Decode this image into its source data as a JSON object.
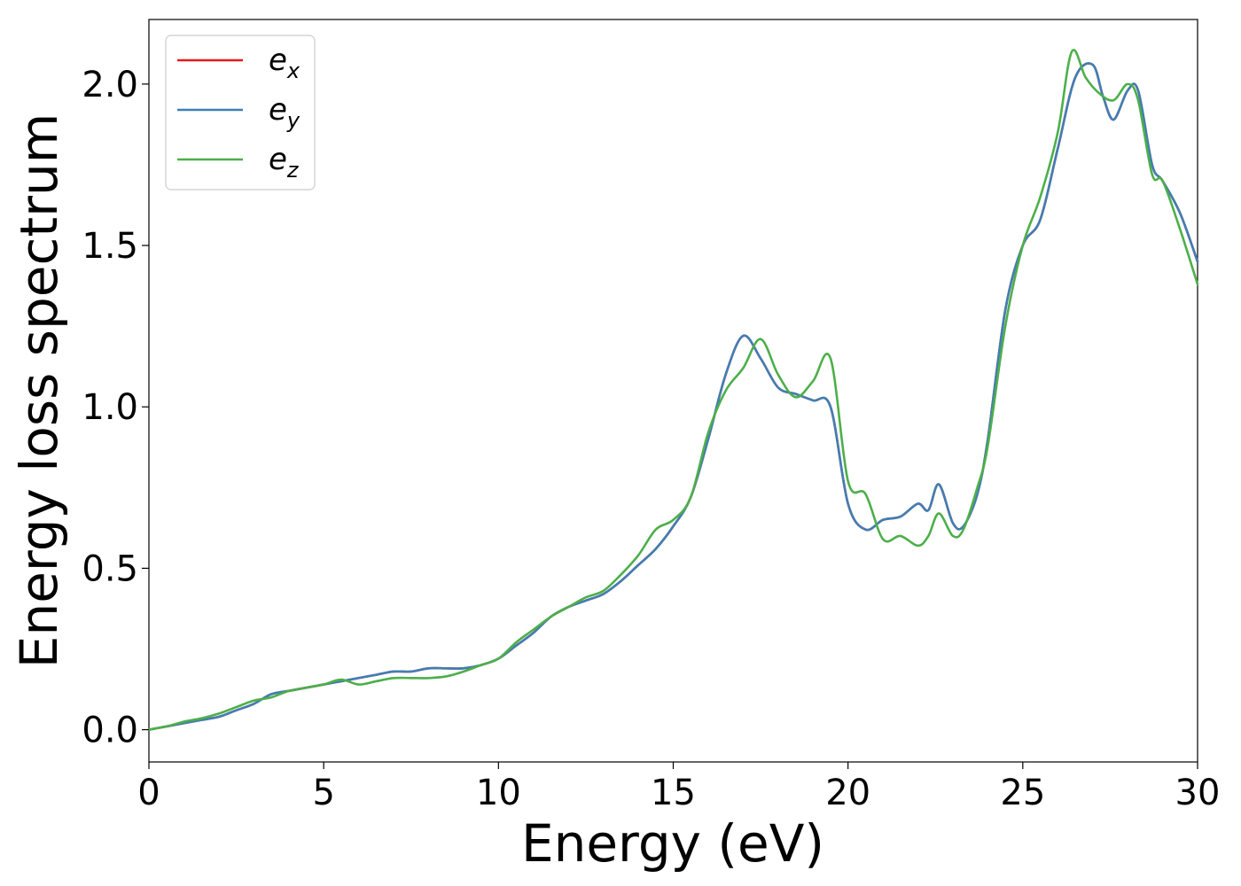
{
  "chart_data": {
    "type": "line",
    "title": "",
    "xlabel": "Energy (eV)",
    "ylabel": "Energy loss spectrum",
    "xlim": [
      0,
      30
    ],
    "ylim": [
      -0.1,
      2.2
    ],
    "xticks": [
      0,
      5,
      10,
      15,
      20,
      25,
      30
    ],
    "xtick_labels": [
      "0",
      "5",
      "10",
      "15",
      "20",
      "25",
      "30"
    ],
    "yticks": [
      0.0,
      0.5,
      1.0,
      1.5,
      2.0
    ],
    "ytick_labels": [
      "0.0",
      "0.5",
      "1.0",
      "1.5",
      "2.0"
    ],
    "grid": false,
    "legend_position": "top-left",
    "series": [
      {
        "name_base": "e",
        "name_sub": "x",
        "color": "#e41a1c",
        "x": [
          0,
          0.5,
          1,
          1.5,
          2,
          2.5,
          3,
          3.5,
          4,
          4.5,
          5,
          5.5,
          6,
          6.5,
          7,
          7.5,
          8,
          8.5,
          9,
          9.5,
          10,
          10.5,
          11,
          11.5,
          12,
          12.5,
          13,
          13.5,
          14,
          14.5,
          15,
          15.5,
          16,
          16.5,
          17,
          17.5,
          18,
          18.5,
          19,
          19.5,
          20,
          20.5,
          21,
          21.5,
          22,
          22.3,
          22.6,
          23,
          23.3,
          23.7,
          24,
          24.5,
          25,
          25.5,
          26,
          26.5,
          27,
          27.3,
          27.6,
          28,
          28.3,
          28.7,
          29,
          29.5,
          30
        ],
        "y": [
          0.0,
          0.01,
          0.02,
          0.03,
          0.04,
          0.06,
          0.08,
          0.11,
          0.12,
          0.13,
          0.14,
          0.15,
          0.16,
          0.17,
          0.18,
          0.18,
          0.19,
          0.19,
          0.19,
          0.2,
          0.22,
          0.26,
          0.3,
          0.35,
          0.38,
          0.4,
          0.42,
          0.46,
          0.51,
          0.56,
          0.63,
          0.72,
          0.9,
          1.1,
          1.22,
          1.15,
          1.06,
          1.04,
          1.02,
          1.0,
          0.7,
          0.62,
          0.65,
          0.66,
          0.7,
          0.68,
          0.76,
          0.64,
          0.63,
          0.73,
          0.9,
          1.3,
          1.5,
          1.58,
          1.8,
          2.02,
          2.06,
          1.96,
          1.89,
          1.98,
          1.98,
          1.75,
          1.7,
          1.6,
          1.45
        ]
      },
      {
        "name_base": "e",
        "name_sub": "y",
        "color": "#3f7fb4",
        "x": [
          0,
          0.5,
          1,
          1.5,
          2,
          2.5,
          3,
          3.5,
          4,
          4.5,
          5,
          5.5,
          6,
          6.5,
          7,
          7.5,
          8,
          8.5,
          9,
          9.5,
          10,
          10.5,
          11,
          11.5,
          12,
          12.5,
          13,
          13.5,
          14,
          14.5,
          15,
          15.5,
          16,
          16.5,
          17,
          17.5,
          18,
          18.5,
          19,
          19.5,
          20,
          20.5,
          21,
          21.5,
          22,
          22.3,
          22.6,
          23,
          23.3,
          23.7,
          24,
          24.5,
          25,
          25.5,
          26,
          26.5,
          27,
          27.3,
          27.6,
          28,
          28.3,
          28.7,
          29,
          29.5,
          30
        ],
        "y": [
          0.0,
          0.01,
          0.02,
          0.03,
          0.04,
          0.06,
          0.08,
          0.11,
          0.12,
          0.13,
          0.14,
          0.15,
          0.16,
          0.17,
          0.18,
          0.18,
          0.19,
          0.19,
          0.19,
          0.2,
          0.22,
          0.26,
          0.3,
          0.35,
          0.38,
          0.4,
          0.42,
          0.46,
          0.51,
          0.56,
          0.63,
          0.72,
          0.9,
          1.1,
          1.22,
          1.15,
          1.06,
          1.04,
          1.02,
          1.0,
          0.7,
          0.62,
          0.65,
          0.66,
          0.7,
          0.68,
          0.76,
          0.64,
          0.63,
          0.73,
          0.9,
          1.3,
          1.5,
          1.58,
          1.8,
          2.02,
          2.06,
          1.96,
          1.89,
          1.98,
          1.98,
          1.75,
          1.7,
          1.6,
          1.45
        ]
      },
      {
        "name_base": "e",
        "name_sub": "z",
        "color": "#4daf4a",
        "x": [
          0,
          0.5,
          1,
          1.5,
          2,
          2.5,
          3,
          3.5,
          4,
          4.5,
          5,
          5.5,
          6,
          6.5,
          7,
          7.5,
          8,
          8.5,
          9,
          9.5,
          10,
          10.5,
          11,
          11.5,
          12,
          12.5,
          13,
          13.5,
          14,
          14.5,
          15,
          15.5,
          16,
          16.5,
          17,
          17.5,
          18,
          18.5,
          19,
          19.5,
          20,
          20.5,
          21,
          21.5,
          22,
          22.3,
          22.6,
          23,
          23.3,
          23.7,
          24,
          24.5,
          25,
          25.5,
          26,
          26.4,
          26.8,
          27.2,
          27.6,
          28,
          28.3,
          28.7,
          29,
          29.5,
          30
        ],
        "y": [
          0.0,
          0.01,
          0.025,
          0.035,
          0.05,
          0.07,
          0.09,
          0.1,
          0.12,
          0.13,
          0.14,
          0.155,
          0.14,
          0.15,
          0.16,
          0.16,
          0.16,
          0.165,
          0.18,
          0.2,
          0.22,
          0.27,
          0.31,
          0.35,
          0.38,
          0.41,
          0.43,
          0.48,
          0.54,
          0.62,
          0.65,
          0.72,
          0.92,
          1.05,
          1.12,
          1.21,
          1.1,
          1.03,
          1.08,
          1.15,
          0.77,
          0.73,
          0.59,
          0.6,
          0.57,
          0.6,
          0.67,
          0.6,
          0.62,
          0.75,
          0.88,
          1.25,
          1.5,
          1.65,
          1.85,
          2.1,
          2.02,
          1.97,
          1.95,
          2.0,
          1.95,
          1.72,
          1.7,
          1.55,
          1.38
        ]
      }
    ]
  }
}
